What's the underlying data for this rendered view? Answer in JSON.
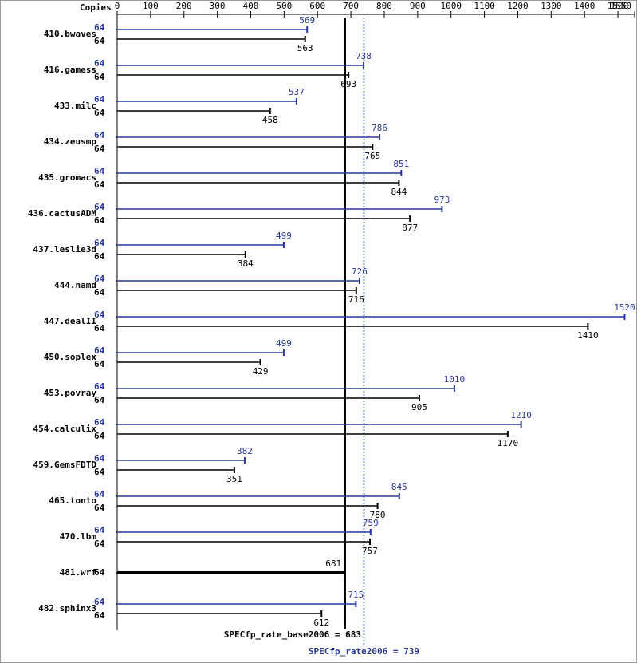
{
  "chart_data": {
    "type": "bar",
    "copies_label": "Copies",
    "categories": [
      "410.bwaves",
      "416.gamess",
      "433.milc",
      "434.zeusmp",
      "435.gromacs",
      "436.cactusADM",
      "437.leslie3d",
      "444.namd",
      "447.dealII",
      "450.soplex",
      "453.povray",
      "454.calculix",
      "459.GemsFDTD",
      "465.tonto",
      "470.lbm",
      "481.wrf",
      "482.sphinx3"
    ],
    "series": [
      {
        "color": "#27379a",
        "copies": [
          64,
          64,
          64,
          64,
          64,
          64,
          64,
          64,
          64,
          64,
          64,
          64,
          64,
          64,
          64,
          null,
          64
        ],
        "values": [
          569,
          738,
          537,
          786,
          851,
          973,
          499,
          726,
          1520,
          499,
          1010,
          1210,
          382,
          845,
          759,
          null,
          715
        ]
      },
      {
        "color": "#000000",
        "copies": [
          64,
          64,
          64,
          64,
          64,
          64,
          64,
          64,
          64,
          64,
          64,
          64,
          64,
          64,
          64,
          64,
          64
        ],
        "values": [
          563,
          693,
          458,
          765,
          844,
          877,
          384,
          716,
          1410,
          429,
          905,
          1170,
          351,
          780,
          757,
          681,
          612
        ]
      }
    ],
    "xlim": [
      0,
      1550
    ],
    "xticks": [
      0,
      100,
      200,
      300,
      400,
      500,
      600,
      700,
      800,
      900,
      1000,
      1100,
      1200,
      1300,
      1400,
      1500,
      1550
    ],
    "base_summary": {
      "label": "SPECfp_rate_base2006 =",
      "value": 683
    },
    "peak_summary": {
      "label": "SPECfp_rate2006 =",
      "value": 739
    }
  }
}
